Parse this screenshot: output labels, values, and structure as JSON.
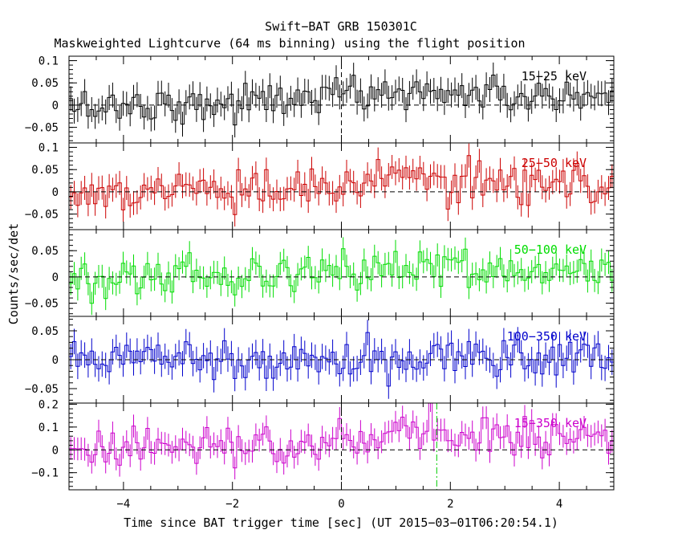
{
  "title": "Swift−BAT GRB 150301C",
  "subtitle": "Maskweighted Lightcurve (64 ms binning) using the flight position",
  "xlabel": "Time since BAT trigger time [sec] (UT 2015−03−01T06:20:54.1)",
  "ylabel": "Counts/sec/det",
  "colors": {
    "axis": "#000000",
    "trigger_line": "#000000",
    "marker_line": "#00cc00",
    "zero_line": "#000000"
  },
  "chart_data": [
    {
      "type": "line",
      "style": "step-with-errorbars",
      "series": [
        {
          "name": "15−25 keV",
          "color": "#000000"
        }
      ],
      "xlim": [
        -5,
        5
      ],
      "ylim": [
        -0.085,
        0.11
      ],
      "yticks": [
        -0.05,
        0,
        0.05,
        0.1
      ],
      "ytick_labels": [
        "−0.05",
        "0",
        "0.05",
        "0.1"
      ],
      "noise_sigma": 0.02,
      "err": 0.028,
      "trend": [
        [
          -5,
          -0.005
        ],
        [
          -4,
          0.0
        ],
        [
          -2,
          0.005
        ],
        [
          0,
          0.025
        ],
        [
          2,
          0.03
        ],
        [
          3,
          0.02
        ],
        [
          4,
          0.015
        ],
        [
          5,
          0.01
        ]
      ],
      "vlines": [
        {
          "x": 0,
          "kind": "trigger"
        }
      ]
    },
    {
      "type": "line",
      "style": "step-with-errorbars",
      "series": [
        {
          "name": "25−50 keV",
          "color": "#cc0000"
        }
      ],
      "xlim": [
        -5,
        5
      ],
      "ylim": [
        -0.085,
        0.11
      ],
      "yticks": [
        -0.05,
        0,
        0.05,
        0.1
      ],
      "ytick_labels": [
        "−0.05",
        "0",
        "0.05",
        "0.1"
      ],
      "noise_sigma": 0.022,
      "err": 0.027,
      "trend": [
        [
          -5,
          -0.01
        ],
        [
          -3,
          0.005
        ],
        [
          -1,
          -0.005
        ],
        [
          0,
          0.01
        ],
        [
          1,
          0.025
        ],
        [
          2,
          0.03
        ],
        [
          3,
          0.02
        ],
        [
          4,
          0.02
        ],
        [
          5,
          0.015
        ]
      ],
      "vlines": []
    },
    {
      "type": "line",
      "style": "step-with-errorbars",
      "series": [
        {
          "name": "50−100 keV",
          "color": "#00dd00"
        }
      ],
      "xlim": [
        -5,
        5
      ],
      "ylim": [
        -0.075,
        0.09
      ],
      "yticks": [
        -0.05,
        0,
        0.05
      ],
      "ytick_labels": [
        "−0.05",
        "0",
        "0.05"
      ],
      "noise_sigma": 0.018,
      "err": 0.022,
      "trend": [
        [
          -5,
          0.0
        ],
        [
          -3,
          0.005
        ],
        [
          0,
          0.005
        ],
        [
          1,
          0.015
        ],
        [
          2,
          0.02
        ],
        [
          3,
          0.01
        ],
        [
          5,
          0.005
        ]
      ],
      "vlines": []
    },
    {
      "type": "line",
      "style": "step-with-errorbars",
      "series": [
        {
          "name": "100−350 keV",
          "color": "#0000cc"
        }
      ],
      "xlim": [
        -5,
        5
      ],
      "ylim": [
        -0.075,
        0.075
      ],
      "yticks": [
        -0.05,
        0,
        0.05
      ],
      "ytick_labels": [
        "−0.05",
        "0",
        "0.05"
      ],
      "noise_sigma": 0.018,
      "err": 0.022,
      "trend": [
        [
          -5,
          0.0
        ],
        [
          -3,
          0.01
        ],
        [
          -1,
          0.0
        ],
        [
          0,
          0.0
        ],
        [
          2,
          0.005
        ],
        [
          5,
          0.005
        ]
      ],
      "vlines": []
    },
    {
      "type": "line",
      "style": "step-with-errorbars",
      "series": [
        {
          "name": "15−350 keV",
          "color": "#cc00cc"
        }
      ],
      "xlim": [
        -5,
        5
      ],
      "ylim": [
        -0.175,
        0.205
      ],
      "yticks": [
        -0.1,
        0,
        0.1,
        0.2
      ],
      "ytick_labels": [
        "−0.1",
        "0",
        "0.1",
        "0.2"
      ],
      "noise_sigma": 0.045,
      "err": 0.05,
      "trend": [
        [
          -5,
          -0.01
        ],
        [
          -3,
          0.02
        ],
        [
          -1,
          0.0
        ],
        [
          0,
          0.05
        ],
        [
          1,
          0.08
        ],
        [
          2,
          0.09
        ],
        [
          3,
          0.07
        ],
        [
          4,
          0.05
        ],
        [
          5,
          0.03
        ]
      ],
      "vlines": [
        {
          "x": 0,
          "kind": "trigger"
        },
        {
          "x": 1.75,
          "kind": "marker"
        }
      ],
      "xticks": [
        -4,
        -2,
        0,
        2,
        4
      ],
      "xtick_labels": [
        "−4",
        "−2",
        "0",
        "2",
        "4"
      ]
    }
  ]
}
